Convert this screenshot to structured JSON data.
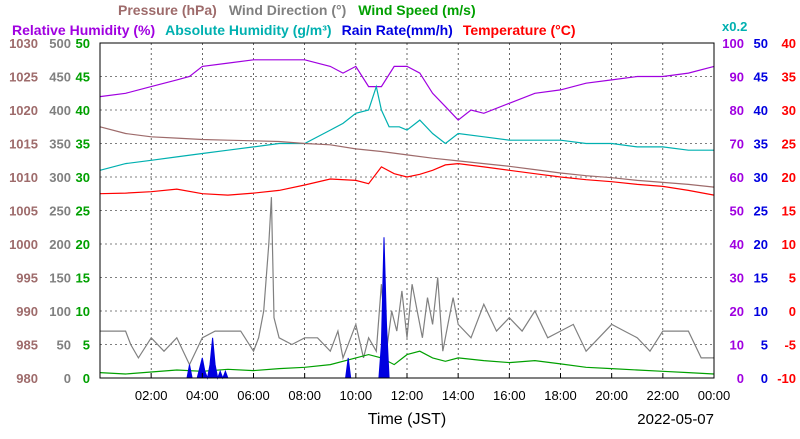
{
  "chart_data": {
    "type": "line",
    "xlabel": "Time (JST)",
    "date_label": "2022-05-07",
    "x_ticks": [
      "02:00",
      "04:00",
      "06:00",
      "08:00",
      "10:00",
      "12:00",
      "14:00",
      "16:00",
      "18:00",
      "20:00",
      "22:00",
      "00:00"
    ],
    "xlim": [
      0,
      24
    ],
    "grid": true,
    "legend_row1": [
      {
        "name": "Pressure (hPa)",
        "color": "#9e6b6b"
      },
      {
        "name": "Wind Direction (°)",
        "color": "#808080"
      },
      {
        "name": "Wind Speed (m/s)",
        "color": "#00a000"
      }
    ],
    "legend_row2": [
      {
        "name": "Relative Humidity (%)",
        "color": "#a000e0"
      },
      {
        "name": "Absolute Humidity (g/m³)",
        "color": "#00b0b0"
      },
      {
        "name": "Rain Rate(mm/h)",
        "color": "#0000e0"
      },
      {
        "name": "Temperature (°C)",
        "color": "#ff0000"
      }
    ],
    "axes": {
      "pressure": {
        "label_color": "#9e6b6b",
        "ylim": [
          980,
          1030
        ],
        "ticks": [
          "980",
          "985",
          "990",
          "995",
          "1000",
          "1005",
          "1010",
          "1015",
          "1020",
          "1025",
          "1030"
        ]
      },
      "wind_direction": {
        "label_color": "#808080",
        "ylim": [
          0,
          500
        ],
        "ticks": [
          "0",
          "50",
          "100",
          "150",
          "200",
          "250",
          "300",
          "350",
          "400",
          "450",
          "500"
        ]
      },
      "wind_speed": {
        "label_color": "#00a000",
        "ylim": [
          0,
          50
        ],
        "ticks": [
          "0",
          "5",
          "10",
          "15",
          "20",
          "25",
          "30",
          "35",
          "40",
          "45",
          "50"
        ]
      },
      "humidity": {
        "label_color": "#a000e0",
        "ylim": [
          0,
          100
        ],
        "ticks": [
          "0",
          "10",
          "20",
          "30",
          "40",
          "50",
          "60",
          "70",
          "80",
          "90",
          "100"
        ],
        "note": "x0.2"
      },
      "rain_rate": {
        "label_color": "#0000e0",
        "ylim": [
          0,
          50
        ],
        "ticks": [
          "0",
          "5",
          "10",
          "15",
          "20",
          "25",
          "30",
          "35",
          "40",
          "45",
          "50"
        ]
      },
      "temperature": {
        "label_color": "#ff0000",
        "ylim": [
          -10,
          40
        ],
        "ticks": [
          "-10",
          "-5",
          "0",
          "5",
          "10",
          "15",
          "20",
          "25",
          "30",
          "35",
          "40"
        ]
      }
    },
    "series": [
      {
        "name": "Relative Humidity (%)",
        "axis": "humidity",
        "color": "#a000e0",
        "x": [
          0,
          1,
          2,
          3,
          3.5,
          4,
          5,
          6,
          7,
          8,
          9,
          9.5,
          10,
          10.5,
          11,
          11.5,
          12,
          12.5,
          13,
          13.5,
          14,
          14.5,
          15,
          16,
          17,
          18,
          19,
          20,
          21,
          22,
          23,
          24
        ],
        "y": [
          84,
          85,
          87,
          89,
          90,
          93,
          94,
          95,
          95,
          95,
          93,
          91,
          93,
          87,
          87,
          93,
          93,
          91,
          85,
          81,
          77,
          80,
          79,
          82,
          85,
          86,
          88,
          89,
          90,
          90,
          91,
          93
        ]
      },
      {
        "name": "Absolute Humidity (g/m³)",
        "axis": "humidity",
        "color": "#00b0b0",
        "x": [
          0,
          1,
          2,
          3,
          4,
          5,
          6,
          7,
          8,
          9,
          9.5,
          10,
          10.5,
          10.8,
          11,
          11.3,
          11.7,
          12,
          12.5,
          13,
          13.5,
          14,
          15,
          16,
          17,
          18,
          19,
          20,
          21,
          22,
          23,
          24
        ],
        "y": [
          62,
          64,
          65,
          66,
          67,
          68,
          69,
          70,
          70,
          74,
          76,
          79,
          80,
          87,
          80,
          75,
          75,
          74,
          77,
          73,
          70,
          73,
          72,
          71,
          71,
          71,
          70,
          70,
          69,
          69,
          68,
          68
        ]
      },
      {
        "name": "Pressure (hPa)",
        "axis": "pressure",
        "color": "#9e6b6b",
        "x": [
          0,
          1,
          2,
          3,
          4,
          5,
          6,
          7,
          8,
          9,
          10,
          11,
          12,
          13,
          14,
          15,
          16,
          17,
          18,
          19,
          20,
          21,
          22,
          23,
          24
        ],
        "y": [
          1017.5,
          1016.5,
          1016.0,
          1015.8,
          1015.6,
          1015.5,
          1015.4,
          1015.3,
          1015.0,
          1014.8,
          1014.2,
          1013.8,
          1013.3,
          1012.8,
          1012.4,
          1012.0,
          1011.6,
          1011.1,
          1010.6,
          1010.2,
          1009.9,
          1009.5,
          1009.2,
          1008.9,
          1008.5
        ]
      },
      {
        "name": "Temperature (°C)",
        "axis": "temperature",
        "color": "#ff0000",
        "x": [
          0,
          1,
          2,
          3,
          4,
          5,
          6,
          7,
          8,
          9,
          10,
          10.5,
          11,
          11.5,
          12,
          12.5,
          13,
          13.5,
          14,
          15,
          16,
          17,
          18,
          19,
          20,
          21,
          22,
          23,
          24
        ],
        "y": [
          17.5,
          17.6,
          17.8,
          18.2,
          17.5,
          17.3,
          17.6,
          18.0,
          18.8,
          19.7,
          19.5,
          19.0,
          21.5,
          20.5,
          20.0,
          20.4,
          21.0,
          21.8,
          22.0,
          21.5,
          21.0,
          20.5,
          20.0,
          19.6,
          19.3,
          18.9,
          18.6,
          18.0,
          17.3
        ]
      },
      {
        "name": "Wind Direction (°)",
        "axis": "wind_direction",
        "color": "#808080",
        "x": [
          0,
          1,
          1.2,
          1.5,
          2,
          2.5,
          3,
          3.5,
          4,
          4.5,
          5,
          5.5,
          6,
          6.2,
          6.4,
          6.6,
          6.7,
          6.8,
          7,
          7.5,
          8,
          8.5,
          9,
          9.3,
          9.5,
          9.8,
          10,
          10.3,
          10.5,
          10.8,
          11,
          11.2,
          11.4,
          11.6,
          11.8,
          12,
          12.2,
          12.4,
          12.6,
          12.8,
          13,
          13.2,
          13.4,
          13.6,
          13.8,
          14,
          14.5,
          15,
          15.5,
          16,
          16.5,
          17,
          17.5,
          18,
          18.5,
          19,
          19.5,
          20,
          20.5,
          21,
          21.5,
          22,
          22.5,
          23,
          23.5,
          24
        ],
        "y": [
          70,
          70,
          50,
          30,
          60,
          40,
          60,
          20,
          60,
          70,
          70,
          70,
          40,
          60,
          100,
          200,
          270,
          90,
          60,
          50,
          60,
          60,
          40,
          70,
          30,
          60,
          80,
          30,
          60,
          40,
          140,
          40,
          100,
          70,
          130,
          60,
          140,
          100,
          60,
          120,
          80,
          150,
          40,
          80,
          120,
          80,
          60,
          110,
          70,
          90,
          70,
          100,
          60,
          70,
          80,
          40,
          60,
          80,
          70,
          60,
          40,
          70,
          70,
          70,
          30,
          30
        ]
      },
      {
        "name": "Wind Speed (m/s)",
        "axis": "wind_speed",
        "color": "#00a000",
        "x": [
          0,
          1,
          2,
          3,
          4,
          5,
          6,
          7,
          8,
          9,
          10,
          10.5,
          11,
          11.5,
          12,
          12.5,
          13,
          13.5,
          14,
          15,
          16,
          17,
          18,
          19,
          20,
          21,
          22,
          23,
          24
        ],
        "y": [
          0.8,
          0.6,
          0.9,
          1.2,
          1.0,
          1.3,
          1.1,
          1.4,
          1.6,
          2.0,
          3.0,
          3.5,
          3.0,
          2.0,
          3.5,
          4.0,
          3.0,
          2.5,
          3.0,
          2.6,
          2.3,
          2.6,
          2.1,
          1.6,
          1.4,
          1.2,
          1.0,
          0.8,
          0.6
        ]
      },
      {
        "name": "Rain Rate(mm/h)",
        "axis": "rain_rate",
        "color": "#0000e0",
        "x": [
          0,
          3.4,
          3.5,
          3.6,
          3.8,
          4.0,
          4.1,
          4.2,
          4.3,
          4.4,
          4.5,
          4.6,
          4.7,
          4.8,
          4.9,
          5.0,
          9.6,
          9.7,
          9.8,
          10.9,
          11.0,
          11.1,
          11.2,
          11.3,
          24
        ],
        "y": [
          0,
          0,
          2,
          0,
          0,
          3,
          1,
          0,
          2,
          6,
          2,
          0,
          1,
          0,
          1,
          0,
          0,
          3,
          0,
          0,
          5,
          21,
          8,
          0,
          0
        ]
      }
    ]
  }
}
